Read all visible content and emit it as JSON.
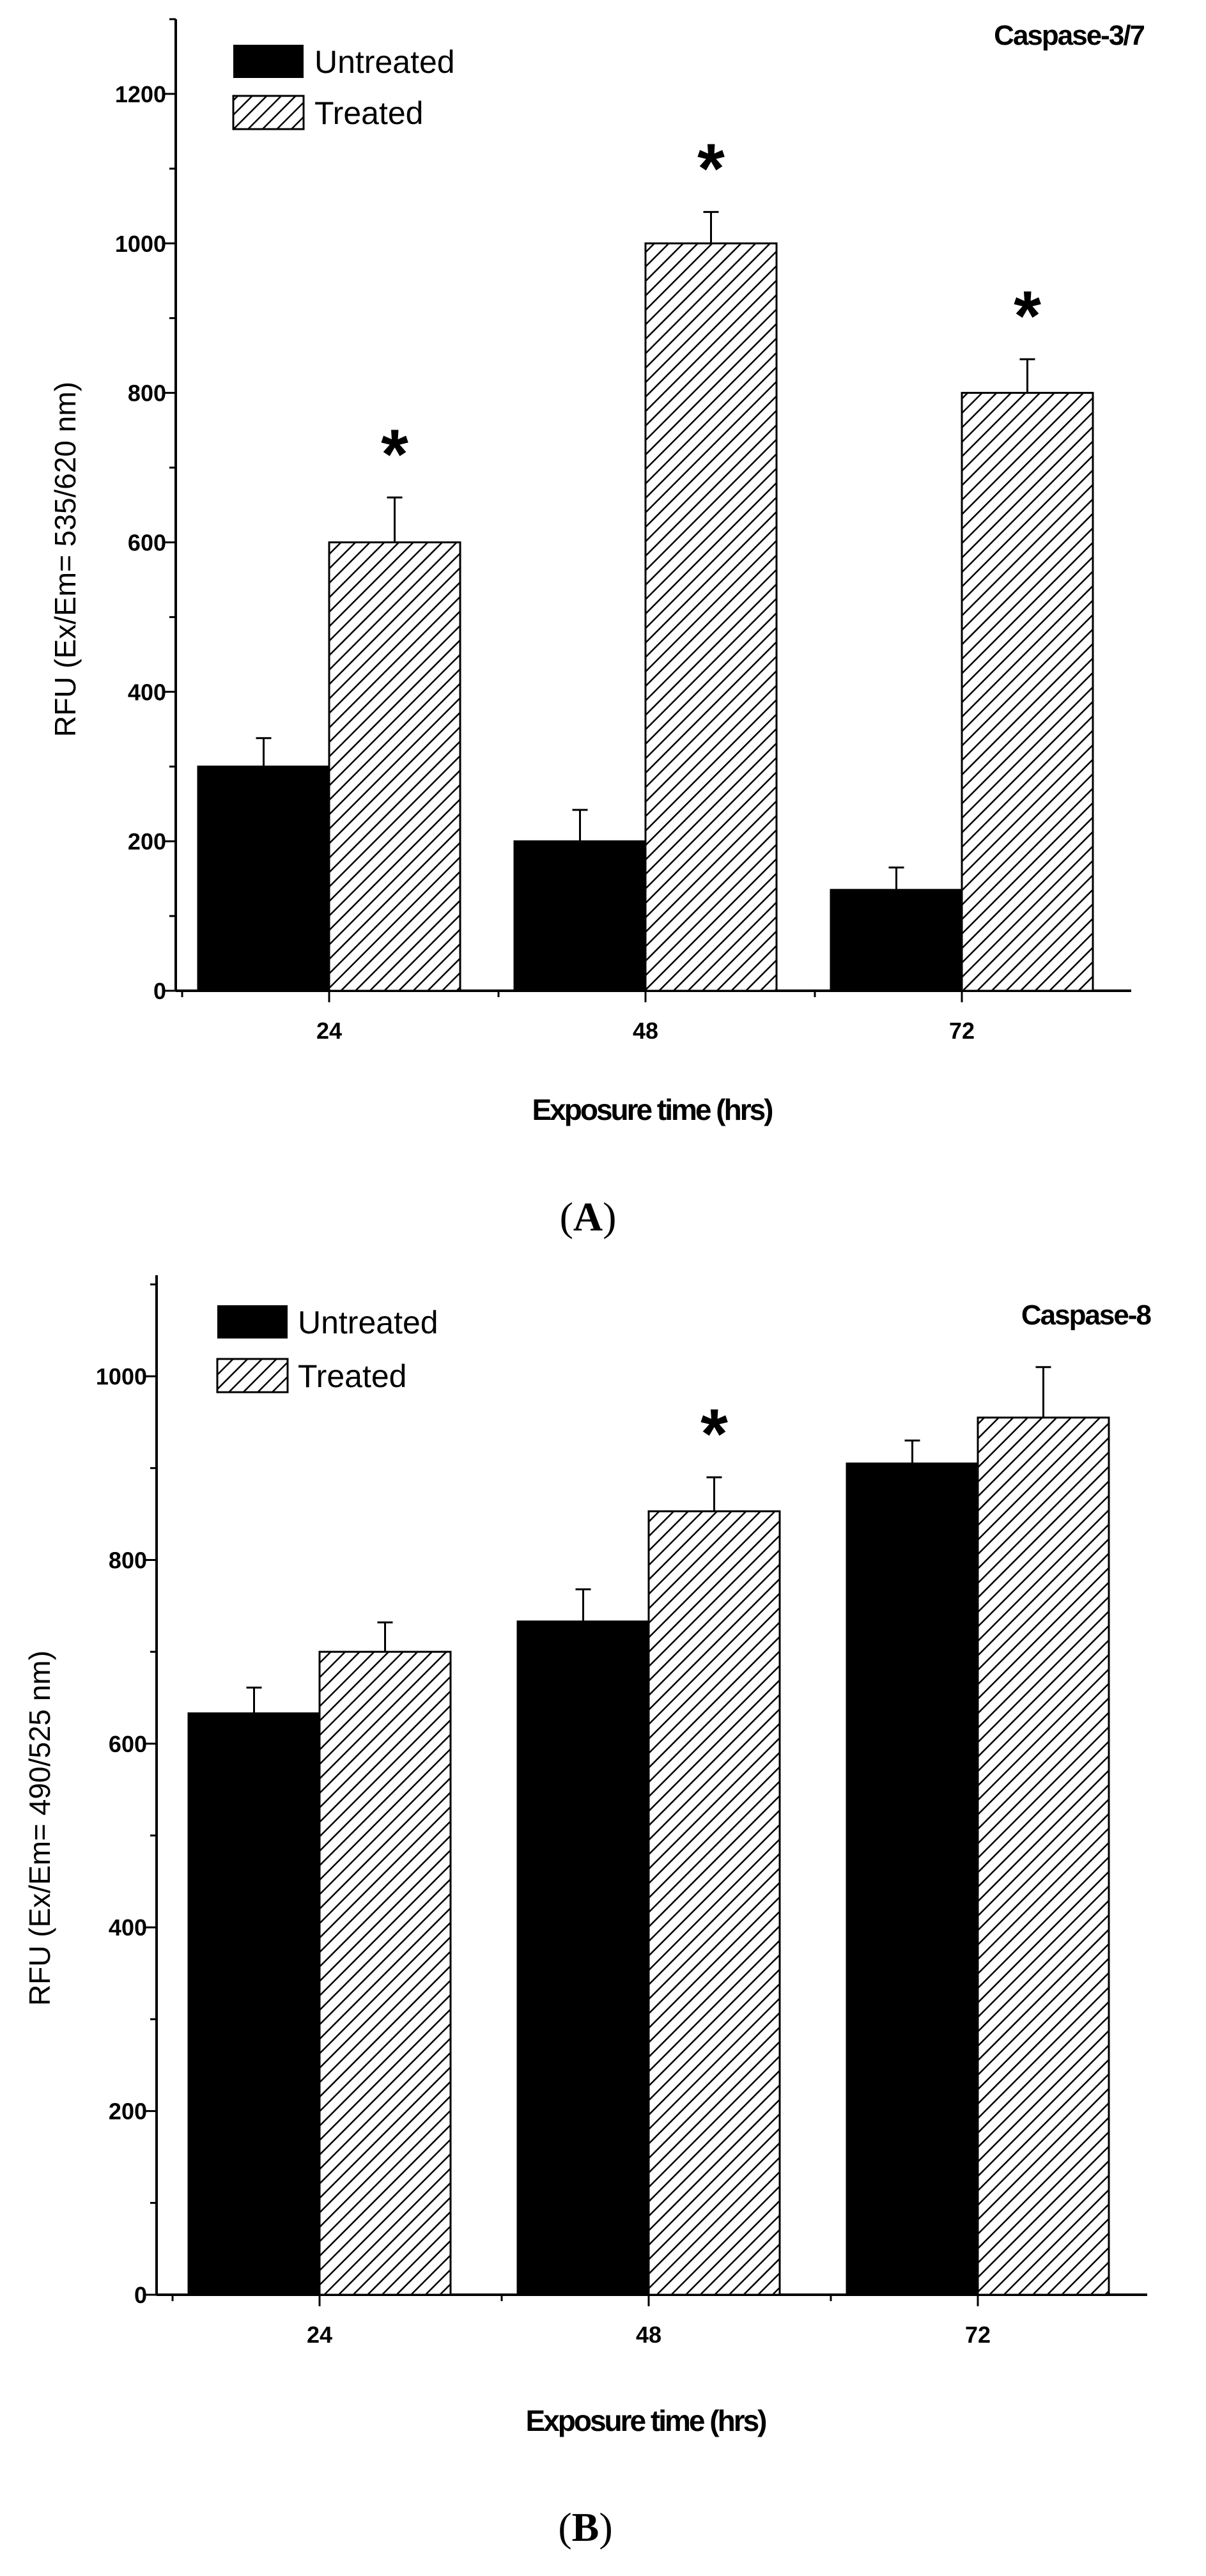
{
  "chart_data": [
    {
      "type": "bar",
      "title": "Caspase-3/7",
      "xlabel": "Exposure time (hrs)",
      "ylabel": "RFU (Ex/Em= 535/620 nm)",
      "categories": [
        "24",
        "48",
        "72"
      ],
      "ylim": [
        0,
        1300
      ],
      "yticks": [
        0,
        200,
        400,
        600,
        800,
        1000,
        1200
      ],
      "series": [
        {
          "name": "Untreated",
          "fill": "solid",
          "values": [
            300,
            200,
            135
          ],
          "errors": [
            38,
            42,
            30
          ]
        },
        {
          "name": "Treated",
          "fill": "hatched",
          "values": [
            600,
            1000,
            800
          ],
          "errors": [
            60,
            42,
            45
          ]
        }
      ],
      "significance": [
        "*",
        "*",
        "*"
      ],
      "panel": {
        "open": "(",
        "letter": "A",
        "close": ")"
      }
    },
    {
      "type": "bar",
      "title": "Caspase-8",
      "xlabel": "Exposure time (hrs)",
      "ylabel": "RFU (Ex/Em= 490/525 nm)",
      "categories": [
        "24",
        "48",
        "72"
      ],
      "ylim": [
        0,
        1110
      ],
      "yticks": [
        0,
        200,
        400,
        600,
        800,
        1000
      ],
      "series": [
        {
          "name": "Untreated",
          "fill": "solid",
          "values": [
            633,
            733,
            905
          ],
          "errors": [
            28,
            35,
            25
          ]
        },
        {
          "name": "Treated",
          "fill": "hatched",
          "values": [
            700,
            853,
            955
          ],
          "errors": [
            32,
            37,
            55
          ]
        }
      ],
      "significance": [
        "",
        "*",
        ""
      ],
      "panel": {
        "open": "(",
        "letter": "B",
        "close": ")"
      }
    }
  ],
  "colors": {
    "untreated": "#000000",
    "treated_stroke": "#000000",
    "background": "#ffffff"
  }
}
